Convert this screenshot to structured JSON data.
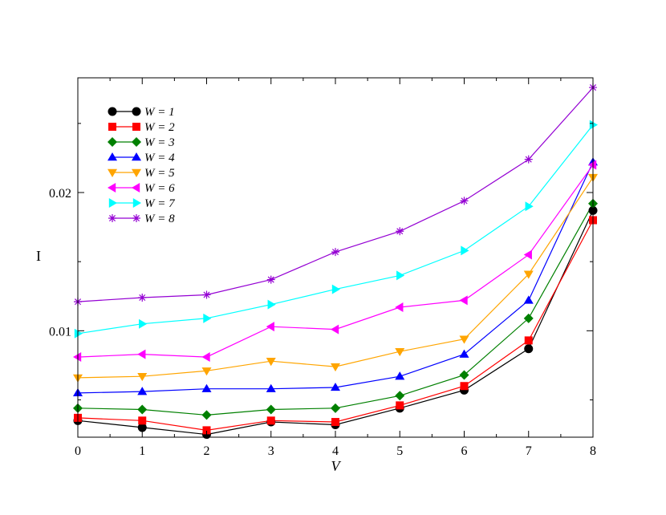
{
  "chart_data": {
    "type": "line",
    "xlabel": "V",
    "ylabel": "I",
    "xlim": [
      0,
      8
    ],
    "ylim": [
      0.0023,
      0.0283
    ],
    "x": [
      0,
      1,
      2,
      3,
      4,
      5,
      6,
      7,
      8
    ],
    "x_ticks": [
      "0",
      "1",
      "2",
      "3",
      "4",
      "5",
      "6",
      "7",
      "8"
    ],
    "y_ticks": [
      {
        "value": 0.01,
        "label": "0.01"
      },
      {
        "value": 0.02,
        "label": "0.02"
      }
    ],
    "y_minor_ticks": [
      0.005,
      0.015,
      0.025
    ],
    "grid": false,
    "legend_position": "top-left",
    "series": [
      {
        "name": "W = 1",
        "color": "#000000",
        "marker": "circle",
        "values": [
          0.0035,
          0.003,
          0.0025,
          0.0034,
          0.0032,
          0.0044,
          0.0057,
          0.0087,
          0.0187
        ]
      },
      {
        "name": "W = 2",
        "color": "#ff0000",
        "marker": "square",
        "values": [
          0.0037,
          0.0035,
          0.0028,
          0.0035,
          0.0034,
          0.0046,
          0.006,
          0.0093,
          0.018
        ]
      },
      {
        "name": "W = 3",
        "color": "#008000",
        "marker": "diamond",
        "values": [
          0.0044,
          0.0043,
          0.0039,
          0.0043,
          0.0044,
          0.0053,
          0.0068,
          0.0109,
          0.0192
        ]
      },
      {
        "name": "W = 4",
        "color": "#0000ff",
        "marker": "triangle-up",
        "values": [
          0.0055,
          0.0056,
          0.0058,
          0.0058,
          0.0059,
          0.0067,
          0.0083,
          0.0122,
          0.0222
        ]
      },
      {
        "name": "W = 5",
        "color": "#ffa500",
        "marker": "triangle-down",
        "values": [
          0.0066,
          0.0067,
          0.0071,
          0.0078,
          0.0074,
          0.0085,
          0.0094,
          0.0141,
          0.0211
        ]
      },
      {
        "name": "W = 6",
        "color": "#ff00ff",
        "marker": "triangle-left",
        "values": [
          0.0081,
          0.0083,
          0.0081,
          0.0103,
          0.0101,
          0.0117,
          0.0122,
          0.0155,
          0.022
        ]
      },
      {
        "name": "W = 7",
        "color": "#00ffff",
        "marker": "triangle-right",
        "values": [
          0.0098,
          0.0105,
          0.0109,
          0.0119,
          0.013,
          0.014,
          0.0158,
          0.019,
          0.0249
        ]
      },
      {
        "name": "W = 8",
        "color": "#9400d3",
        "marker": "star",
        "values": [
          0.0121,
          0.0124,
          0.0126,
          0.0137,
          0.0157,
          0.0172,
          0.0194,
          0.0224,
          0.0276
        ]
      }
    ]
  }
}
